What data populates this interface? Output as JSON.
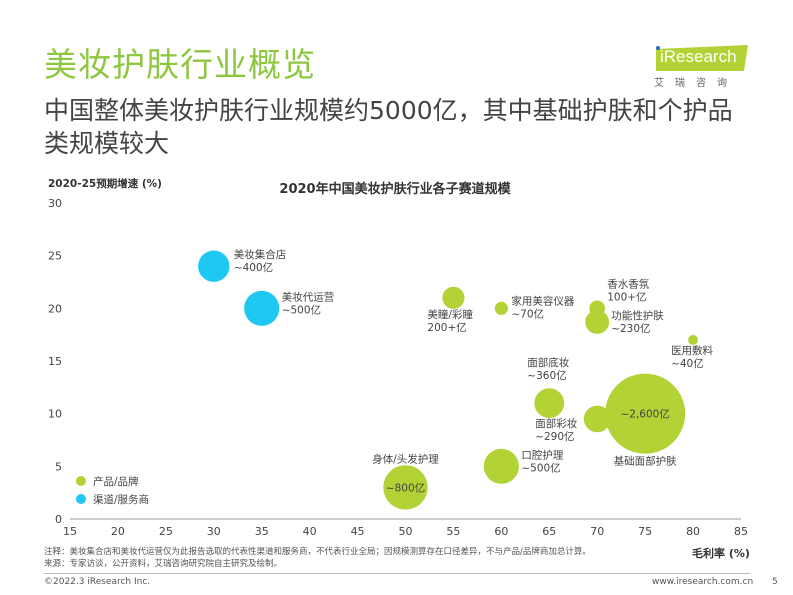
{
  "header": {
    "title": "美妆护肤行业概览",
    "subtitle": "中国整体美妆护肤行业规模约5000亿，其中基础护肤和个护品类规模较大",
    "logo_text": "iResearch",
    "logo_cn": "艾瑞咨询"
  },
  "chart_data": {
    "type": "scatter",
    "title": "2020年中国美妆护肤行业各子赛道规模",
    "ylabel": "2020-25预期增速 (%)",
    "xlabel": "毛利率 (%)",
    "xlim": [
      15,
      85
    ],
    "ylim": [
      0,
      30
    ],
    "xticks": [
      "15",
      "20",
      "25",
      "30",
      "35",
      "40",
      "45",
      "50",
      "55",
      "60",
      "65",
      "70",
      "75",
      "80",
      "85"
    ],
    "yticks": [
      "0",
      "5",
      "10",
      "15",
      "20",
      "25",
      "30"
    ],
    "grid": false,
    "legend_position": "bottom-left",
    "legend": [
      {
        "name": "产品/品牌",
        "color": "#b2d235"
      },
      {
        "name": "渠道/服务商",
        "color": "#1ec8f0"
      }
    ],
    "points": [
      {
        "name": "美妆集合店",
        "size_label": "~400亿",
        "x": 30,
        "y": 24,
        "size": 400,
        "group": 1
      },
      {
        "name": "美妆代运营",
        "size_label": "~500亿",
        "x": 35,
        "y": 20,
        "size": 500,
        "group": 1
      },
      {
        "name": "美瞳/彩瞳",
        "size_label": "200+亿",
        "x": 55,
        "y": 21,
        "size": 200,
        "group": 0
      },
      {
        "name": "家用美容仪器",
        "size_label": "~70亿",
        "x": 60,
        "y": 20,
        "size": 70,
        "group": 0
      },
      {
        "name": "香水香氛",
        "size_label": "100+亿",
        "x": 70,
        "y": 20,
        "size": 100,
        "group": 0
      },
      {
        "name": "功能性护肤",
        "size_label": "~230亿",
        "x": 70,
        "y": 18.7,
        "size": 230,
        "group": 0
      },
      {
        "name": "医用敷料",
        "size_label": "~40亿",
        "x": 80,
        "y": 17,
        "size": 40,
        "group": 0
      },
      {
        "name": "面部底妆",
        "size_label": "~360亿",
        "x": 65,
        "y": 11,
        "size": 360,
        "group": 0
      },
      {
        "name": "面部彩妆",
        "size_label": "~290亿",
        "x": 70,
        "y": 9.5,
        "size": 290,
        "group": 0
      },
      {
        "name": "基础面部护肤",
        "size_label": "~2,600亿",
        "x": 75,
        "y": 10,
        "size": 2600,
        "group": 0
      },
      {
        "name": "口腔护理",
        "size_label": "~500亿",
        "x": 60,
        "y": 5,
        "size": 500,
        "group": 0
      },
      {
        "name": "身体/头发护理",
        "size_label": "~800亿",
        "x": 50,
        "y": 3,
        "size": 800,
        "group": 0
      }
    ]
  },
  "footer": {
    "note": "注释：美妆集合店和美妆代运营仅为此报告选取的代表性渠道和服务商，不代表行业全局；因规模测算存在口径差异，不与产品/品牌商加总计算。",
    "source": "来源：专家访谈，公开资料，艾瑞咨询研究院自主研究及绘制。",
    "copyright": "©2022.3 iResearch Inc.",
    "url": "www.iresearch.com.cn",
    "page": "5"
  }
}
